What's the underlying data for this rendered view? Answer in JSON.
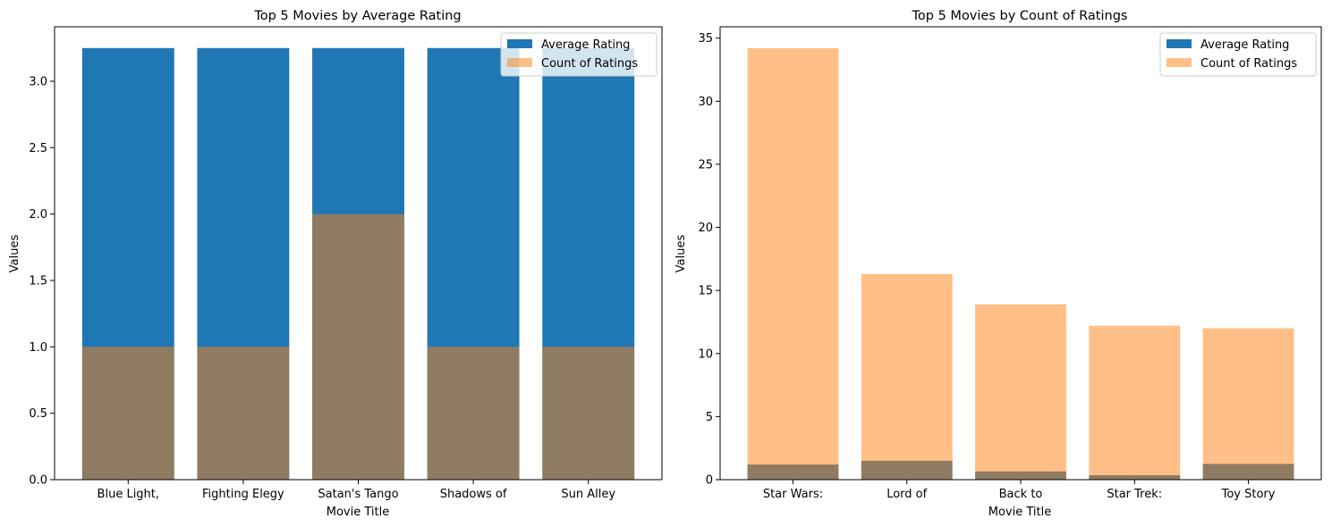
{
  "colors": {
    "avg": "#1f77b4",
    "count": "#ff7f0e",
    "count_alpha": 0.5
  },
  "chart_data": [
    {
      "type": "bar",
      "title": "Top 5 Movies by Average Rating",
      "xlabel": "Movie Title",
      "ylabel": "Values",
      "categories": [
        "Blue Light,",
        "Fighting Elegy",
        "Satan's Tango",
        "Shadows of",
        "Sun Alley"
      ],
      "series": [
        {
          "name": "Average Rating",
          "values": [
            3.25,
            3.25,
            3.25,
            3.25,
            3.25
          ]
        },
        {
          "name": "Count of Ratings",
          "values": [
            1,
            1,
            2,
            1,
            1
          ]
        }
      ],
      "ylim": [
        0,
        3.41
      ],
      "yticks": [
        "0.0",
        "0.5",
        "1.0",
        "1.5",
        "2.0",
        "2.5",
        "3.0"
      ],
      "legend": "top-right"
    },
    {
      "type": "bar",
      "title": "Top 5 Movies by Count of Ratings",
      "xlabel": "Movie Title",
      "ylabel": "Values",
      "categories": [
        "Star Wars:",
        "Lord of",
        "Back to",
        "Star Trek:",
        "Toy Story"
      ],
      "series": [
        {
          "name": "Average Rating",
          "values": [
            1.2,
            1.5,
            0.65,
            0.35,
            1.25
          ]
        },
        {
          "name": "Count of Ratings",
          "values": [
            34.2,
            16.3,
            13.9,
            12.2,
            12.0
          ]
        }
      ],
      "ylim": [
        0,
        35.9
      ],
      "yticks": [
        "0",
        "5",
        "10",
        "15",
        "20",
        "25",
        "30",
        "35"
      ],
      "legend": "top-right"
    }
  ]
}
